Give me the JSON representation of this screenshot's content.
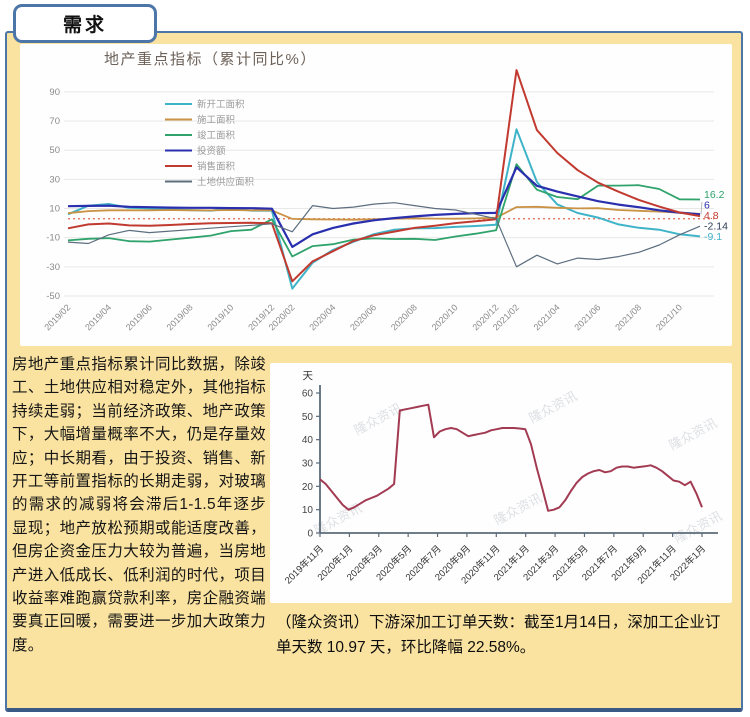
{
  "tab": {
    "label": "需求"
  },
  "analysis": {
    "text": "房地产重点指标累计同比数据，除竣工、土地供应相对稳定外，其他指标持续走弱；当前经济政策、地产政策下，大幅增量概率不大，仍是存量效应；中长期看，由于投资、销售、新开工等前置指标的长期走弱，对玻璃的需求的减弱将会滞后1-1.5年逐步显现；地产放松预期或能适度改善，但房企资金压力大较为普遍，当房地产进入低成长、低利润的时代，项目收益率难跑赢贷款利率，房企融资端要真正回暖，需要进一步加大政策力度。"
  },
  "orders_caption": {
    "text": "（隆众资讯）下游深加工订单天数：截至1月14日，深加工企业订单天数 10.97 天，环比降幅 22.58%。"
  },
  "chart_data": [
    {
      "type": "line",
      "title": "地产重点指标（累计同比%）",
      "title_color": "#6d625a",
      "legend_position": "inside-upper-left",
      "grid": true,
      "ylim": [
        -50,
        105
      ],
      "yticks": [
        90,
        70,
        50,
        30,
        10,
        -10,
        -30,
        -50
      ],
      "reference_line": {
        "value": 3,
        "style": "dotted",
        "color": "#e0664a"
      },
      "x": [
        "2019/02",
        "2019/03",
        "2019/04",
        "2019/05",
        "2019/06",
        "2019/07",
        "2019/08",
        "2019/09",
        "2019/10",
        "2019/11",
        "2019/12",
        "2020/02",
        "2020/03",
        "2020/04",
        "2020/05",
        "2020/06",
        "2020/07",
        "2020/08",
        "2020/09",
        "2020/10",
        "2020/11",
        "2020/12",
        "2021/02",
        "2021/03",
        "2021/04",
        "2021/05",
        "2021/06",
        "2021/07",
        "2021/08",
        "2021/09",
        "2021/10",
        "2021/11"
      ],
      "x_tick_labels": [
        "2019/02",
        "2019/04",
        "2019/06",
        "2019/08",
        "2019/10",
        "2019/12",
        "2020/02",
        "2020/04",
        "2020/06",
        "2020/08",
        "2020/10",
        "2020/12",
        "2021/02",
        "2021/04",
        "2021/06",
        "2021/08",
        "2021/10"
      ],
      "series": [
        {
          "name": "新开工面积",
          "color": "#3fb4c8",
          "end_label": "-9.1",
          "values": [
            6.0,
            11.9,
            13.1,
            10.5,
            10.1,
            9.5,
            8.9,
            8.6,
            10.0,
            8.6,
            8.5,
            -44.9,
            -27.2,
            -18.4,
            -12.8,
            -7.6,
            -4.5,
            -3.6,
            -3.4,
            -2.6,
            -2.0,
            -1.2,
            64.3,
            28.2,
            12.8,
            6.9,
            3.8,
            -0.9,
            -3.2,
            -4.5,
            -7.7,
            -9.1
          ]
        },
        {
          "name": "施工面积",
          "color": "#c99245",
          "end_label": null,
          "values": [
            6.8,
            8.2,
            8.8,
            8.8,
            8.8,
            9.0,
            8.8,
            8.7,
            9.0,
            8.7,
            8.7,
            2.9,
            2.6,
            2.5,
            2.3,
            2.6,
            3.0,
            3.3,
            3.1,
            3.0,
            3.2,
            3.7,
            11.0,
            11.2,
            10.5,
            10.1,
            10.2,
            9.0,
            8.4,
            7.9,
            7.1,
            6.3
          ]
        },
        {
          "name": "竣工面积",
          "color": "#2fa36b",
          "end_label": "16.2",
          "values": [
            -11.9,
            -10.8,
            -10.3,
            -12.4,
            -12.7,
            -11.3,
            -10.0,
            -8.6,
            -5.5,
            -4.5,
            2.6,
            -22.9,
            -15.8,
            -14.5,
            -11.3,
            -10.5,
            -10.9,
            -10.8,
            -11.6,
            -9.2,
            -7.3,
            -4.9,
            40.4,
            22.9,
            17.9,
            16.4,
            25.7,
            25.7,
            26.0,
            23.4,
            16.3,
            16.2
          ]
        },
        {
          "name": "投资额",
          "color": "#2a2fae",
          "end_label": "6",
          "values": [
            11.6,
            11.8,
            11.9,
            11.2,
            10.9,
            10.6,
            10.5,
            10.5,
            10.3,
            10.2,
            9.9,
            -16.3,
            -7.7,
            -3.3,
            -0.3,
            1.9,
            3.4,
            4.6,
            5.6,
            6.3,
            6.8,
            7.0,
            38.3,
            25.6,
            21.6,
            18.3,
            15.0,
            12.7,
            10.9,
            8.8,
            7.2,
            6.0
          ]
        },
        {
          "name": "销售面积",
          "color": "#c13a30",
          "end_label": "4.8",
          "values": [
            -3.6,
            -0.9,
            -0.3,
            -1.6,
            -1.8,
            -1.3,
            -0.6,
            -0.1,
            0.1,
            0.2,
            -0.1,
            -39.9,
            -26.3,
            -19.3,
            -12.3,
            -8.4,
            -5.8,
            -3.3,
            -1.8,
            0.0,
            1.3,
            2.6,
            104.9,
            63.8,
            48.1,
            36.3,
            27.7,
            21.5,
            15.9,
            11.3,
            7.3,
            4.8
          ]
        },
        {
          "name": "土地供应面积",
          "color": "#5d6e7f",
          "end_label": "-2.14",
          "end_label_color": "#2e3c54",
          "values": [
            -13,
            -14,
            -8,
            -5,
            -6.5,
            -5.5,
            -4.5,
            -3.5,
            -2.5,
            -1.5,
            -0.5,
            -6,
            12,
            10,
            11,
            13,
            14,
            12,
            10,
            9,
            6,
            3,
            -30,
            -22,
            -28,
            -24,
            -25,
            -23,
            -20,
            -15,
            -8,
            -2.14
          ]
        }
      ]
    },
    {
      "type": "line",
      "unit_label": "天",
      "watermark": "隆众资讯",
      "grid": false,
      "ylim": [
        0,
        60
      ],
      "yticks": [
        0,
        10,
        20,
        30,
        40,
        50,
        60
      ],
      "x_tick_labels": [
        "2019年11月",
        "2020年1月",
        "2020年3月",
        "2020年5月",
        "2020年7月",
        "2020年9月",
        "2020年11月",
        "2021年1月",
        "2021年3月",
        "2021年5月",
        "2021年7月",
        "2021年9月",
        "2021年11月",
        "2022年1月"
      ],
      "series": [
        {
          "name": "下游深加工订单天数",
          "color": "#a23a52",
          "values": [
            23,
            21,
            18,
            15,
            12,
            10,
            11,
            12.5,
            14,
            15,
            16,
            17.5,
            19,
            21,
            52.5,
            53,
            53.5,
            54,
            54.5,
            55,
            41,
            43.5,
            44.5,
            45,
            44.5,
            43,
            41.5,
            42,
            42.5,
            43,
            44,
            44.5,
            45,
            45,
            45,
            44.8,
            44.5,
            38,
            28,
            19,
            9.5,
            10,
            11,
            14,
            18,
            21.5,
            24,
            25.5,
            26.5,
            27,
            26,
            26.5,
            28,
            28.5,
            28.5,
            28,
            28.3,
            28.6,
            29,
            28,
            26.5,
            24.5,
            22.5,
            22,
            20.5,
            22,
            17,
            11
          ]
        }
      ],
      "latest_value": "10.97",
      "latest_change": "-22.58%"
    }
  ]
}
